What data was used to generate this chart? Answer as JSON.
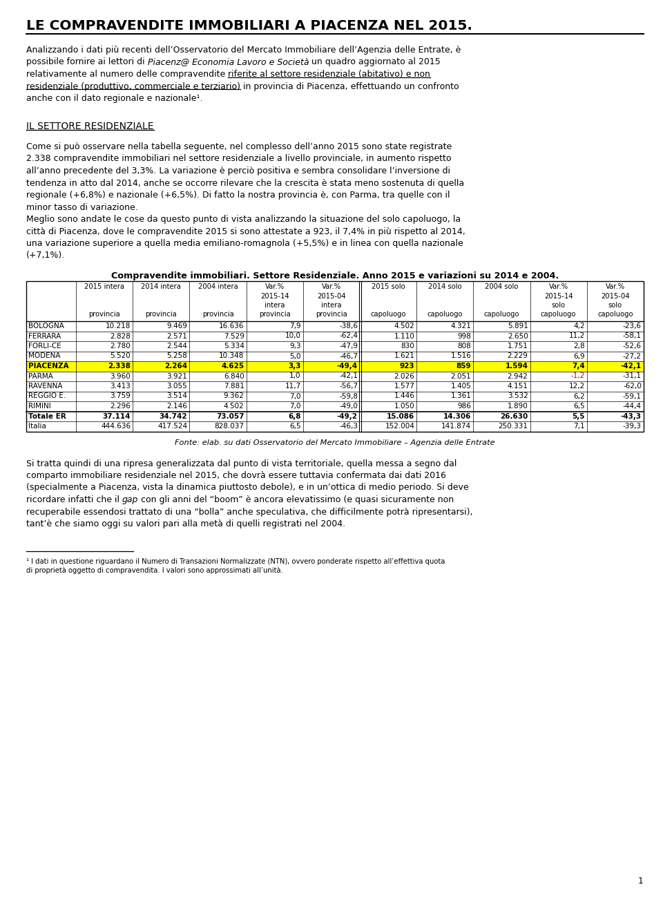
{
  "title": "LE COMPRAVENDITE IMMOBILIARI A PIACENZA NEL 2015.",
  "section_title": "IL SETTORE RESIDENZIALE",
  "table_title": "Compravendite immobiliari. Settore Residenziale. Anno 2015 e variazioni su 2014 e 2004.",
  "col_headers": [
    [
      "2015 intera",
      "2014 intera",
      "2004 intera",
      "Var.%",
      "Var.%",
      "2015 solo",
      "2014 solo",
      "2004 solo",
      "Var.%",
      "Var.%"
    ],
    [
      "",
      "",
      "",
      "2015-14",
      "2015-04",
      "",
      "",
      "",
      "2015-14",
      "2015-04"
    ],
    [
      "",
      "",
      "",
      "intera",
      "intera",
      "",
      "",
      "",
      "solo",
      "solo"
    ],
    [
      "provincia",
      "provincia",
      "provincia",
      "provincia",
      "provincia",
      "capoluogo",
      "capoluogo",
      "capoluogo",
      "capoluogo",
      "capoluogo"
    ]
  ],
  "rows": [
    [
      "BOLOGNA",
      "10.218",
      "9.469",
      "16.636",
      "7,9",
      "-38,6",
      "4.502",
      "4.321",
      "5.891",
      "4,2",
      "-23,6"
    ],
    [
      "FERRARA",
      "2.828",
      "2.571",
      "7.529",
      "10,0",
      "-62,4",
      "1.110",
      "998",
      "2.650",
      "11,2",
      "-58,1"
    ],
    [
      "FORLI-CE",
      "2.780",
      "2.544",
      "5.334",
      "9,3",
      "-47,9",
      "830",
      "808",
      "1.751",
      "2,8",
      "-52,6"
    ],
    [
      "MODENA",
      "5.520",
      "5.258",
      "10.348",
      "5,0",
      "-46,7",
      "1.621",
      "1.516",
      "2.229",
      "6,9",
      "-27,2"
    ],
    [
      "PIACENZA",
      "2.338",
      "2.264",
      "4.625",
      "3,3",
      "-49,4",
      "923",
      "859",
      "1.594",
      "7,4",
      "-42,1"
    ],
    [
      "PARMA",
      "3.960",
      "3.921",
      "6.840",
      "1,0",
      "-42,1",
      "2.026",
      "2.051",
      "2.942",
      "-1,2",
      "-31,1"
    ],
    [
      "RAVENNA",
      "3.413",
      "3.055",
      "7.881",
      "11,7",
      "-56,7",
      "1.577",
      "1.405",
      "4.151",
      "12,2",
      "-62,0"
    ],
    [
      "REGGIO E.",
      "3.759",
      "3.514",
      "9.362",
      "7,0",
      "-59,8",
      "1.446",
      "1.361",
      "3.532",
      "6,2",
      "-59,1"
    ],
    [
      "RIMINI",
      "2.296",
      "2.146",
      "4.502",
      "7,0",
      "-49,0",
      "1.050",
      "986",
      "1.890",
      "6,5",
      "-44,4"
    ],
    [
      "Totale ER",
      "37.114",
      "34.742",
      "73.057",
      "6,8",
      "-49,2",
      "15.086",
      "14.306",
      "26.630",
      "5,5",
      "-43,3"
    ],
    [
      "Italia",
      "444.636",
      "417.524",
      "828.037",
      "6,5",
      "-46,3",
      "152.004",
      "141.874",
      "250.331",
      "7,1",
      "-39,3"
    ]
  ],
  "piacenza_row_idx": 4,
  "totale_row_idx": 9,
  "fonte": "Fonte: elab. su dati Osservatorio del Mercato Immobiliare – Agenzia delle Entrate",
  "bg_color": "#ffffff",
  "highlight_color": "#ffff00",
  "red_color": "#cc0000"
}
